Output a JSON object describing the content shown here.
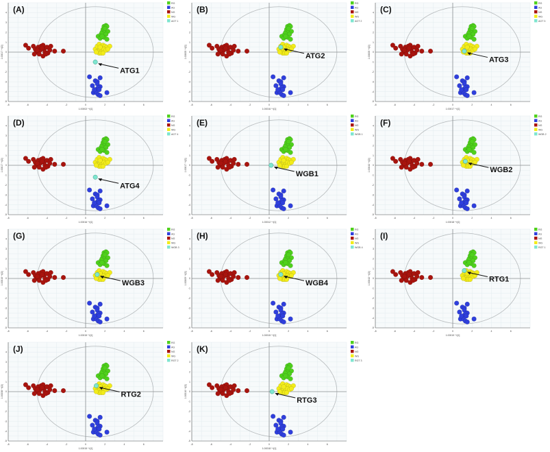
{
  "chart_data": {
    "type": "scatter",
    "xlim": [
      -8,
      8
    ],
    "ylim": [
      -5,
      5
    ],
    "xticks": [
      -8,
      -6,
      -4,
      -2,
      0,
      2,
      4,
      6
    ],
    "yticks": [
      -5,
      -4,
      -3,
      -2,
      -1,
      0,
      1,
      2,
      3,
      4
    ],
    "grid": true,
    "legend_placement": "right",
    "colors": {
      "RG": "#4fd11c",
      "AG": "#2f3fdc",
      "NG": "#a8140e",
      "WG": "#f2ec1a",
      "test": "#7fe6d0"
    },
    "series": [
      {
        "name": "RG",
        "points": [
          [
            1.3,
            1.6
          ],
          [
            1.5,
            1.4
          ],
          [
            1.6,
            1.8
          ],
          [
            1.7,
            2.0
          ],
          [
            1.8,
            2.3
          ],
          [
            1.9,
            2.6
          ],
          [
            2.1,
            2.7
          ],
          [
            2.2,
            2.6
          ],
          [
            2.0,
            2.2
          ],
          [
            2.3,
            2.1
          ],
          [
            2.1,
            1.8
          ],
          [
            1.9,
            1.5
          ],
          [
            2.2,
            1.3
          ],
          [
            1.7,
            1.6
          ],
          [
            2.0,
            2.4
          ]
        ]
      },
      {
        "name": "AG",
        "points": [
          [
            0.4,
            -2.5
          ],
          [
            1.0,
            -2.9
          ],
          [
            1.2,
            -3.0
          ],
          [
            1.5,
            -2.6
          ],
          [
            1.2,
            -3.2
          ],
          [
            0.7,
            -3.4
          ],
          [
            1.5,
            -3.5
          ],
          [
            1.3,
            -3.6
          ],
          [
            1.0,
            -3.8
          ],
          [
            1.4,
            -3.8
          ],
          [
            0.8,
            -4.1
          ],
          [
            1.1,
            -4.1
          ],
          [
            1.3,
            -4.3
          ],
          [
            1.5,
            -4.4
          ],
          [
            2.2,
            -4.1
          ],
          [
            0.9,
            -3.8
          ]
        ]
      },
      {
        "name": "NG",
        "points": [
          [
            -6.2,
            0.7
          ],
          [
            -5.9,
            0.4
          ],
          [
            -5.4,
            0.6
          ],
          [
            -5.2,
            0.3
          ],
          [
            -5.1,
            0.0
          ],
          [
            -4.9,
            0.5
          ],
          [
            -4.7,
            0.2
          ],
          [
            -4.6,
            0.6
          ],
          [
            -4.4,
            0.7
          ],
          [
            -4.3,
            0.3
          ],
          [
            -4.2,
            0.0
          ],
          [
            -4.0,
            0.5
          ],
          [
            -3.9,
            -0.1
          ],
          [
            -3.7,
            0.2
          ],
          [
            -5.3,
            -0.2
          ],
          [
            -4.8,
            -0.2
          ],
          [
            -4.4,
            -0.4
          ],
          [
            -4.1,
            -0.2
          ],
          [
            -3.6,
            0.6
          ],
          [
            -3.2,
            0.1
          ],
          [
            -2.3,
            0.1
          ],
          [
            -5.0,
            0.2
          ],
          [
            -4.5,
            0.4
          ]
        ]
      },
      {
        "name": "WG",
        "points": [
          [
            1.0,
            0.3
          ],
          [
            1.2,
            0.6
          ],
          [
            1.4,
            0.8
          ],
          [
            1.6,
            0.5
          ],
          [
            1.8,
            0.7
          ],
          [
            2.0,
            0.6
          ],
          [
            2.2,
            0.5
          ],
          [
            2.5,
            0.6
          ],
          [
            1.3,
            0.1
          ],
          [
            1.5,
            0.2
          ],
          [
            1.7,
            0.1
          ],
          [
            1.9,
            0.3
          ],
          [
            2.1,
            0.2
          ],
          [
            1.4,
            -0.1
          ],
          [
            1.6,
            -0.1
          ],
          [
            1.8,
            -0.1
          ],
          [
            2.3,
            0.3
          ],
          [
            1.1,
            0.0
          ],
          [
            1.5,
            0.5
          ]
        ]
      }
    ],
    "panels": [
      {
        "label": "(A)",
        "legend_test": "AGT 1",
        "annotation": "ATG1",
        "test_point": [
          1.0,
          -1.0
        ],
        "xlabel": "1.00002 * t[1]",
        "ylabel": "1.00017 * t[2]"
      },
      {
        "label": "(B)",
        "legend_test": "AGT 2",
        "annotation": "ATG2",
        "test_point": [
          1.2,
          0.5
        ],
        "xlabel": "1.00016 * t[1]",
        "ylabel": "1.00005 * t[2]"
      },
      {
        "label": "(C)",
        "legend_test": "AGT 3",
        "annotation": "ATG3",
        "test_point": [
          1.2,
          0.1
        ],
        "xlabel": "1.00017 * t[1]",
        "ylabel": "1.00005 * t[2]"
      },
      {
        "label": "(D)",
        "legend_test": "AGT 4",
        "annotation": "ATG4",
        "test_point": [
          1.0,
          -1.2
        ],
        "xlabel": "1.00016 * t[1]",
        "ylabel": "1.00017 * t[2]"
      },
      {
        "label": "(E)",
        "legend_test": "WGB 1",
        "annotation": "WGB1",
        "test_point": [
          0.2,
          0.0
        ],
        "xlabel": "1.00012 * t[1]",
        "ylabel": "1.00017 * t[2]"
      },
      {
        "label": "(F)",
        "legend_test": "WGB 2",
        "annotation": "WGB2",
        "test_point": [
          1.3,
          0.4
        ],
        "xlabel": "1.00018 * t[1]",
        "ylabel": "1.00042 * t[2]"
      },
      {
        "label": "(G)",
        "legend_test": "WGB 3",
        "annotation": "WGB3",
        "test_point": [
          1.2,
          0.4
        ],
        "xlabel": "1.00015 * t[1]",
        "ylabel": "1.00016 * t[2]"
      },
      {
        "label": "(H)",
        "legend_test": "WGB 4",
        "annotation": "WGB4",
        "test_point": [
          1.2,
          0.4
        ],
        "xlabel": "1.00015 * t[1]",
        "ylabel": "1.00009 * t[2]"
      },
      {
        "label": "(I)",
        "legend_test": "RGT 1",
        "annotation": "RTG1",
        "test_point": [
          1.2,
          0.8
        ],
        "xlabel": "1.00019 * t[1]",
        "ylabel": "1.00042 * t[2]"
      },
      {
        "label": "(J)",
        "legend_test": "RGT 2",
        "annotation": "RTG2",
        "test_point": [
          1.1,
          0.6
        ],
        "xlabel": "1.00015 * t[1]",
        "ylabel": "1.00038 * t[2]"
      },
      {
        "label": "(K)",
        "legend_test": "RGT 3",
        "annotation": "RTG3",
        "test_point": [
          0.3,
          0.0
        ],
        "xlabel": "1.00018 * t[1]",
        "ylabel": "1.00016 * t[2]"
      }
    ]
  }
}
